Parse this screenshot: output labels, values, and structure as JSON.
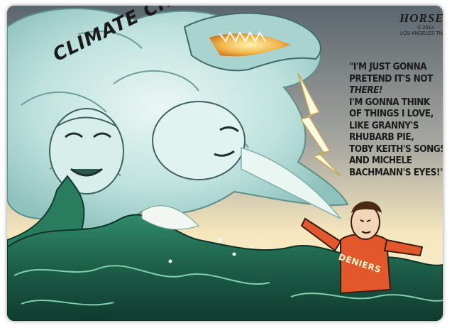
{
  "cartoon": {
    "label": "CLIMATE CHANGE",
    "speech_lines": [
      "\"I'M JUST GONNA",
      "PRETEND IT'S NOT",
      "THERE!",
      "I'M GONNA THINK",
      "OF THINGS I LOVE,",
      "LIKE GRANNY'S",
      "RHUBARB PIE,",
      "TOBY KEITH'S SONGS",
      "AND MICHELE",
      "BACHMANN'S EYES!\""
    ],
    "shirt_text": "DENIERS",
    "signature": "HORSEY",
    "copyright": "© 2013",
    "publisher": "LOS ANGELES TIMES"
  },
  "colors": {
    "sky_top": "#5d6a72",
    "sky_glow": "#f6e3b4",
    "wave_green": "#1f6a52",
    "storm_cloud": "#bfe2e0",
    "shirt": "#e2572b"
  },
  "icons": [
    "storm-face-icon",
    "lightning-bolt-icon",
    "wave-icon",
    "man-covering-ears-icon"
  ]
}
